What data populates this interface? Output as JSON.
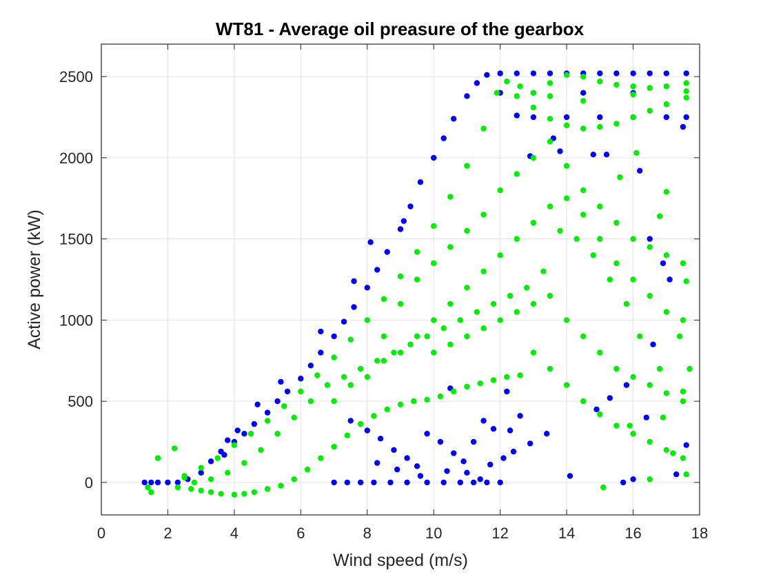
{
  "chart_data": {
    "type": "scatter",
    "title": "WT81 - Average oil preasure of the gearbox",
    "xlabel": "Wind speed (m/s)",
    "ylabel": "Active power (kW)",
    "xlim": [
      0,
      18
    ],
    "ylim": [
      -200,
      2700
    ],
    "xticks": [
      0,
      2,
      4,
      6,
      8,
      10,
      12,
      14,
      16,
      18
    ],
    "yticks": [
      0,
      500,
      1000,
      1500,
      2000,
      2500
    ],
    "grid": true,
    "legend": "none",
    "series": [
      {
        "color": "#0000ff",
        "points": [
          [
            1.3,
            0
          ],
          [
            1.5,
            0
          ],
          [
            1.7,
            0
          ],
          [
            2.0,
            0
          ],
          [
            2.3,
            0
          ],
          [
            2.6,
            20
          ],
          [
            3.0,
            60
          ],
          [
            3.3,
            130
          ],
          [
            3.6,
            190
          ],
          [
            3.8,
            260
          ],
          [
            4.0,
            250
          ],
          [
            4.3,
            300
          ],
          [
            4.6,
            360
          ],
          [
            5.0,
            430
          ],
          [
            5.3,
            500
          ],
          [
            5.6,
            560
          ],
          [
            6.0,
            640
          ],
          [
            6.3,
            720
          ],
          [
            6.6,
            800
          ],
          [
            7.0,
            900
          ],
          [
            7.3,
            990
          ],
          [
            7.6,
            1080
          ],
          [
            8.0,
            1200
          ],
          [
            8.3,
            1310
          ],
          [
            8.6,
            1420
          ],
          [
            9.0,
            1560
          ],
          [
            9.3,
            1700
          ],
          [
            9.6,
            1850
          ],
          [
            10.0,
            2000
          ],
          [
            10.3,
            2120
          ],
          [
            10.6,
            2240
          ],
          [
            11.0,
            2380
          ],
          [
            11.3,
            2460
          ],
          [
            11.6,
            2510
          ],
          [
            12.0,
            2520
          ],
          [
            12.5,
            2520
          ],
          [
            13.0,
            2520
          ],
          [
            13.5,
            2520
          ],
          [
            14.0,
            2520
          ],
          [
            14.5,
            2520
          ],
          [
            15.0,
            2520
          ],
          [
            15.5,
            2520
          ],
          [
            16.0,
            2520
          ],
          [
            16.5,
            2520
          ],
          [
            17.0,
            2520
          ],
          [
            17.6,
            2520
          ],
          [
            12.5,
            2260
          ],
          [
            13.0,
            2250
          ],
          [
            14.0,
            2250
          ],
          [
            15.0,
            2250
          ],
          [
            16.0,
            2250
          ],
          [
            17.0,
            2250
          ],
          [
            17.6,
            2250
          ],
          [
            12.0,
            2400
          ],
          [
            13.0,
            2400
          ],
          [
            14.5,
            2400
          ],
          [
            16.0,
            2400
          ],
          [
            17.5,
            2190
          ],
          [
            7.0,
            0
          ],
          [
            7.4,
            0
          ],
          [
            7.8,
            0
          ],
          [
            8.2,
            0
          ],
          [
            8.7,
            0
          ],
          [
            9.2,
            0
          ],
          [
            9.8,
            0
          ],
          [
            10.3,
            0
          ],
          [
            10.8,
            0
          ],
          [
            11.2,
            0
          ],
          [
            11.6,
            0
          ],
          [
            12.0,
            0
          ],
          [
            7.5,
            380
          ],
          [
            8.0,
            320
          ],
          [
            8.4,
            270
          ],
          [
            8.8,
            200
          ],
          [
            9.2,
            150
          ],
          [
            9.5,
            100
          ],
          [
            9.8,
            300
          ],
          [
            10.2,
            250
          ],
          [
            10.6,
            180
          ],
          [
            10.9,
            130
          ],
          [
            11.2,
            250
          ],
          [
            11.5,
            380
          ],
          [
            11.8,
            330
          ],
          [
            12.3,
            320
          ],
          [
            12.6,
            410
          ],
          [
            8.3,
            120
          ],
          [
            8.9,
            80
          ],
          [
            9.6,
            40
          ],
          [
            10.4,
            70
          ],
          [
            11.0,
            60
          ],
          [
            11.4,
            20
          ],
          [
            11.7,
            110
          ],
          [
            12.1,
            150
          ],
          [
            12.4,
            190
          ],
          [
            12.9,
            240
          ],
          [
            13.4,
            300
          ],
          [
            14.1,
            40
          ],
          [
            15.7,
            0
          ],
          [
            16.0,
            20
          ],
          [
            16.6,
            850
          ],
          [
            16.9,
            1350
          ],
          [
            16.5,
            1500
          ],
          [
            16.2,
            1920
          ],
          [
            14.8,
            2020
          ],
          [
            15.2,
            2020
          ],
          [
            13.8,
            2040
          ],
          [
            13.6,
            2120
          ],
          [
            12.9,
            2010
          ],
          [
            15.8,
            600
          ],
          [
            16.4,
            400
          ],
          [
            17.1,
            1250
          ],
          [
            17.6,
            230
          ],
          [
            17.3,
            50
          ],
          [
            15.3,
            520
          ],
          [
            14.9,
            450
          ],
          [
            9.1,
            1610
          ],
          [
            8.1,
            1480
          ],
          [
            7.6,
            1240
          ],
          [
            6.6,
            930
          ],
          [
            5.4,
            620
          ],
          [
            4.7,
            480
          ],
          [
            4.1,
            320
          ],
          [
            3.7,
            170
          ],
          [
            12.2,
            560
          ],
          [
            10.5,
            580
          ]
        ]
      },
      {
        "color": "#00ee00",
        "points": [
          [
            1.4,
            -30
          ],
          [
            1.5,
            -60
          ],
          [
            1.7,
            150
          ],
          [
            2.2,
            210
          ],
          [
            2.3,
            -30
          ],
          [
            2.5,
            30
          ],
          [
            2.7,
            -40
          ],
          [
            3.0,
            -50
          ],
          [
            3.3,
            -60
          ],
          [
            3.6,
            -70
          ],
          [
            4.0,
            -75
          ],
          [
            4.3,
            -70
          ],
          [
            4.6,
            -60
          ],
          [
            5.0,
            -40
          ],
          [
            5.4,
            -20
          ],
          [
            5.8,
            20
          ],
          [
            6.2,
            80
          ],
          [
            6.6,
            150
          ],
          [
            7.0,
            220
          ],
          [
            7.4,
            290
          ],
          [
            7.8,
            360
          ],
          [
            8.2,
            410
          ],
          [
            8.6,
            450
          ],
          [
            9.0,
            480
          ],
          [
            9.4,
            500
          ],
          [
            9.8,
            510
          ],
          [
            10.2,
            530
          ],
          [
            10.6,
            560
          ],
          [
            11.0,
            590
          ],
          [
            11.4,
            610
          ],
          [
            11.8,
            630
          ],
          [
            12.2,
            650
          ],
          [
            12.6,
            660
          ],
          [
            2.5,
            40
          ],
          [
            3.0,
            90
          ],
          [
            3.5,
            150
          ],
          [
            4.0,
            230
          ],
          [
            4.5,
            300
          ],
          [
            5.0,
            380
          ],
          [
            5.5,
            470
          ],
          [
            6.0,
            560
          ],
          [
            6.5,
            660
          ],
          [
            7.0,
            770
          ],
          [
            7.5,
            880
          ],
          [
            8.0,
            1000
          ],
          [
            8.5,
            1130
          ],
          [
            9.0,
            1270
          ],
          [
            9.5,
            1420
          ],
          [
            10.0,
            1580
          ],
          [
            10.5,
            1760
          ],
          [
            11.0,
            1950
          ],
          [
            11.5,
            2180
          ],
          [
            11.9,
            2400
          ],
          [
            12.2,
            2470
          ],
          [
            12.6,
            2440
          ],
          [
            13.0,
            2400
          ],
          [
            13.5,
            2460
          ],
          [
            14.0,
            2510
          ],
          [
            14.5,
            2500
          ],
          [
            15.0,
            2470
          ],
          [
            15.5,
            2450
          ],
          [
            16.0,
            2440
          ],
          [
            16.5,
            2430
          ],
          [
            17.0,
            2440
          ],
          [
            17.6,
            2460
          ],
          [
            13.0,
            2310
          ],
          [
            13.5,
            2240
          ],
          [
            14.0,
            2200
          ],
          [
            14.5,
            2180
          ],
          [
            15.0,
            2190
          ],
          [
            15.5,
            2210
          ],
          [
            16.0,
            2250
          ],
          [
            16.5,
            2290
          ],
          [
            17.0,
            2330
          ],
          [
            17.6,
            2370
          ],
          [
            12.5,
            2380
          ],
          [
            13.5,
            2380
          ],
          [
            14.5,
            2350
          ],
          [
            16.0,
            2390
          ],
          [
            17.6,
            2410
          ],
          [
            7.0,
            500
          ],
          [
            7.5,
            600
          ],
          [
            8.0,
            650
          ],
          [
            8.5,
            750
          ],
          [
            9.0,
            800
          ],
          [
            9.5,
            900
          ],
          [
            10.0,
            1000
          ],
          [
            10.5,
            1100
          ],
          [
            11.0,
            1200
          ],
          [
            11.5,
            1300
          ],
          [
            12.0,
            1400
          ],
          [
            12.5,
            1500
          ],
          [
            13.0,
            1600
          ],
          [
            13.5,
            1700
          ],
          [
            14.0,
            1750
          ],
          [
            14.5,
            1650
          ],
          [
            15.0,
            1500
          ],
          [
            15.5,
            1350
          ],
          [
            16.0,
            1250
          ],
          [
            16.5,
            1150
          ],
          [
            17.0,
            1050
          ],
          [
            17.5,
            1000
          ],
          [
            8.5,
            900
          ],
          [
            9.0,
            1100
          ],
          [
            9.5,
            1250
          ],
          [
            10.0,
            1350
          ],
          [
            10.5,
            1450
          ],
          [
            11.0,
            1550
          ],
          [
            11.5,
            1650
          ],
          [
            12.0,
            1800
          ],
          [
            12.5,
            1900
          ],
          [
            13.0,
            2000
          ],
          [
            13.5,
            2100
          ],
          [
            14.0,
            1950
          ],
          [
            14.5,
            1800
          ],
          [
            15.0,
            1700
          ],
          [
            15.5,
            1600
          ],
          [
            16.0,
            1500
          ],
          [
            16.5,
            1450
          ],
          [
            17.0,
            1400
          ],
          [
            17.5,
            1350
          ],
          [
            10.0,
            800
          ],
          [
            10.5,
            850
          ],
          [
            11.0,
            900
          ],
          [
            11.5,
            950
          ],
          [
            12.0,
            1000
          ],
          [
            12.5,
            1050
          ],
          [
            13.0,
            1100
          ],
          [
            13.5,
            1150
          ],
          [
            14.0,
            1000
          ],
          [
            14.5,
            900
          ],
          [
            15.0,
            800
          ],
          [
            15.5,
            700
          ],
          [
            16.0,
            650
          ],
          [
            16.5,
            600
          ],
          [
            17.0,
            550
          ],
          [
            17.5,
            500
          ],
          [
            13.0,
            800
          ],
          [
            13.5,
            700
          ],
          [
            14.0,
            600
          ],
          [
            14.5,
            500
          ],
          [
            15.0,
            420
          ],
          [
            15.5,
            350
          ],
          [
            16.0,
            300
          ],
          [
            16.5,
            250
          ],
          [
            17.0,
            200
          ],
          [
            17.5,
            150
          ],
          [
            17.6,
            50
          ],
          [
            15.1,
            -30
          ],
          [
            16.5,
            20
          ],
          [
            17.2,
            180
          ],
          [
            16.8,
            700
          ],
          [
            16.2,
            900
          ],
          [
            15.8,
            1100
          ],
          [
            15.3,
            1250
          ],
          [
            14.8,
            1400
          ],
          [
            14.3,
            1500
          ],
          [
            13.8,
            1550
          ],
          [
            13.3,
            1300
          ],
          [
            12.8,
            1200
          ],
          [
            12.3,
            1150
          ],
          [
            11.8,
            1100
          ],
          [
            11.3,
            1050
          ],
          [
            10.8,
            1000
          ],
          [
            10.3,
            950
          ],
          [
            9.8,
            900
          ],
          [
            9.3,
            850
          ],
          [
            8.8,
            800
          ],
          [
            8.3,
            750
          ],
          [
            7.8,
            700
          ],
          [
            7.3,
            650
          ],
          [
            6.8,
            600
          ],
          [
            6.3,
            500
          ],
          [
            5.8,
            400
          ],
          [
            5.3,
            300
          ],
          [
            4.8,
            200
          ],
          [
            4.3,
            120
          ],
          [
            3.8,
            60
          ],
          [
            3.3,
            20
          ],
          [
            2.8,
            0
          ],
          [
            16.1,
            2030
          ],
          [
            15.6,
            1880
          ],
          [
            17.0,
            1790
          ],
          [
            16.8,
            1640
          ],
          [
            17.6,
            1240
          ],
          [
            17.4,
            900
          ],
          [
            17.7,
            700
          ],
          [
            16.9,
            400
          ],
          [
            17.5,
            560
          ],
          [
            15.9,
            350
          ]
        ]
      }
    ]
  }
}
